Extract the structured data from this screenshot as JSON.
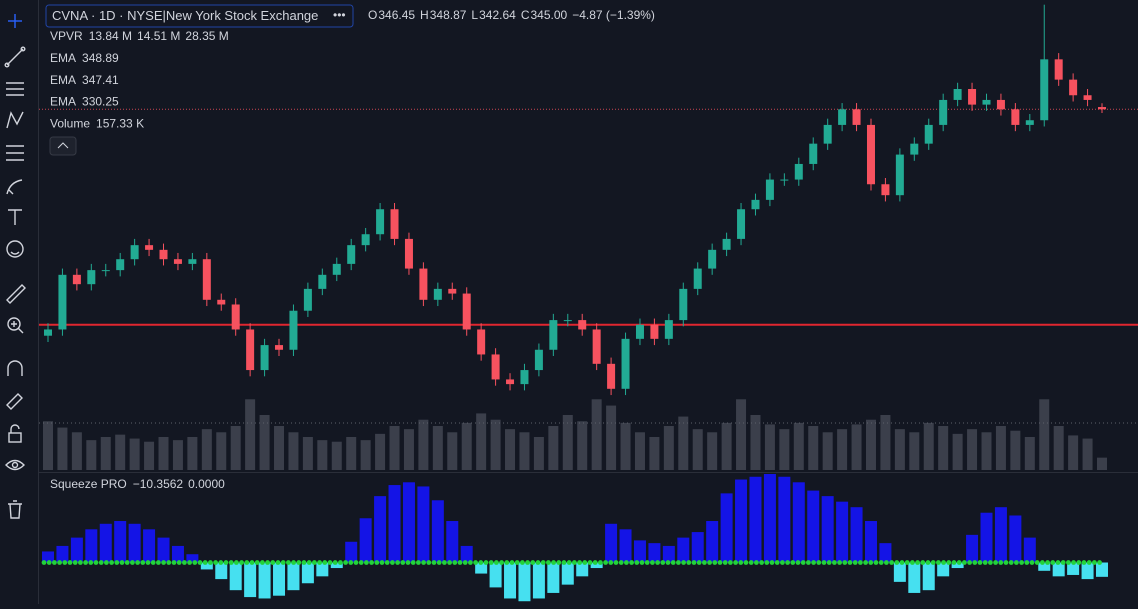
{
  "header": {
    "symbol": "CVNA · 1D · NYSE|New York Stock Exchange",
    "menu": "•••",
    "ohlc": [
      {
        "label": "O",
        "value": "346.45"
      },
      {
        "label": "H",
        "value": "348.87"
      },
      {
        "label": "L",
        "value": "342.64"
      },
      {
        "label": "C",
        "value": "345.00"
      }
    ],
    "change": "−4.87 (−1.39%)"
  },
  "indicators": [
    {
      "name": "VPVR",
      "values": [
        "13.84 M",
        "14.51 M",
        "28.35 M"
      ],
      "colors": [
        "#5b9cf6",
        "#e8e84a",
        "#d1d4dc"
      ]
    },
    {
      "name": "EMA",
      "values": [
        "348.89"
      ],
      "colors": [
        "#f7525f"
      ]
    },
    {
      "name": "EMA",
      "values": [
        "347.41"
      ],
      "colors": [
        "#2e6b7c"
      ]
    },
    {
      "name": "EMA",
      "values": [
        "330.25"
      ],
      "colors": [
        "#d1ad5b"
      ]
    },
    {
      "name": "Volume",
      "values": [
        "157.33 K"
      ],
      "colors": [
        "#d1d4dc"
      ]
    }
  ],
  "chart_data": {
    "type": "candlestick",
    "up_color": "#22ab94",
    "down_color": "#f7525f",
    "ylim": [
      114,
      415
    ],
    "hline": 207,
    "hline_color": "#e0262f",
    "candles": [
      [
        200,
        208,
        196,
        204
      ],
      [
        204,
        243,
        200,
        239
      ],
      [
        239,
        243,
        229,
        233
      ],
      [
        233,
        246,
        229,
        242
      ],
      [
        242,
        246,
        238,
        242
      ],
      [
        242,
        253,
        238,
        249
      ],
      [
        249,
        262,
        245,
        258
      ],
      [
        258,
        262,
        251,
        255
      ],
      [
        255,
        259,
        245,
        249
      ],
      [
        249,
        253,
        242,
        246
      ],
      [
        246,
        253,
        242,
        249
      ],
      [
        249,
        253,
        219,
        223
      ],
      [
        223,
        227,
        216,
        220
      ],
      [
        220,
        224,
        200,
        204
      ],
      [
        204,
        208,
        174,
        178
      ],
      [
        178,
        198,
        174,
        194
      ],
      [
        194,
        198,
        187,
        191
      ],
      [
        191,
        220,
        187,
        216
      ],
      [
        216,
        234,
        212,
        230
      ],
      [
        230,
        243,
        226,
        239
      ],
      [
        239,
        250,
        235,
        246
      ],
      [
        246,
        262,
        242,
        258
      ],
      [
        258,
        269,
        254,
        265
      ],
      [
        265,
        285,
        261,
        281
      ],
      [
        281,
        285,
        258,
        262
      ],
      [
        262,
        266,
        239,
        243
      ],
      [
        243,
        247,
        219,
        223
      ],
      [
        223,
        234,
        219,
        230
      ],
      [
        230,
        234,
        223,
        227
      ],
      [
        227,
        231,
        200,
        204
      ],
      [
        204,
        208,
        184,
        188
      ],
      [
        188,
        192,
        168,
        172
      ],
      [
        172,
        176,
        165,
        169
      ],
      [
        169,
        182,
        165,
        178
      ],
      [
        178,
        195,
        174,
        191
      ],
      [
        191,
        214,
        187,
        210
      ],
      [
        210,
        214,
        206,
        210
      ],
      [
        210,
        214,
        200,
        204
      ],
      [
        204,
        208,
        178,
        182
      ],
      [
        182,
        186,
        162,
        166
      ],
      [
        166,
        202,
        162,
        198
      ],
      [
        198,
        211,
        194,
        207
      ],
      [
        207,
        211,
        194,
        198
      ],
      [
        198,
        214,
        194,
        210
      ],
      [
        210,
        234,
        206,
        230
      ],
      [
        230,
        247,
        226,
        243
      ],
      [
        243,
        259,
        239,
        255
      ],
      [
        255,
        266,
        251,
        262
      ],
      [
        262,
        285,
        258,
        281
      ],
      [
        281,
        291,
        277,
        287
      ],
      [
        287,
        304,
        283,
        300
      ],
      [
        300,
        304,
        296,
        300
      ],
      [
        300,
        314,
        296,
        310
      ],
      [
        310,
        327,
        306,
        323
      ],
      [
        323,
        339,
        319,
        335
      ],
      [
        335,
        349,
        331,
        345
      ],
      [
        345,
        349,
        331,
        335
      ],
      [
        335,
        339,
        293,
        297
      ],
      [
        297,
        301,
        286,
        290
      ],
      [
        290,
        320,
        286,
        316
      ],
      [
        316,
        327,
        312,
        323
      ],
      [
        323,
        339,
        319,
        335
      ],
      [
        335,
        355,
        331,
        351
      ],
      [
        351,
        362,
        347,
        358
      ],
      [
        358,
        362,
        344,
        348
      ],
      [
        348,
        355,
        344,
        351
      ],
      [
        351,
        355,
        341,
        345
      ],
      [
        345,
        349,
        331,
        335
      ],
      [
        335,
        342,
        331,
        338
      ],
      [
        338,
        412,
        334,
        377
      ],
      [
        377,
        381,
        360,
        364
      ],
      [
        364,
        368,
        350,
        354
      ],
      [
        354,
        358,
        347,
        351
      ],
      [
        346.45,
        348.87,
        342.64,
        345.0
      ]
    ],
    "volume": {
      "color": "#3b3f4b",
      "ylim": [
        0,
        1400
      ],
      "values": [
        620,
        540,
        480,
        380,
        420,
        450,
        400,
        360,
        420,
        380,
        420,
        520,
        480,
        560,
        900,
        700,
        560,
        480,
        420,
        380,
        360,
        420,
        380,
        460,
        560,
        520,
        640,
        560,
        480,
        600,
        720,
        640,
        520,
        480,
        420,
        560,
        700,
        620,
        900,
        820,
        600,
        480,
        420,
        560,
        680,
        520,
        480,
        600,
        900,
        700,
        580,
        520,
        600,
        560,
        480,
        520,
        580,
        640,
        700,
        520,
        480,
        600,
        560,
        460,
        520,
        480,
        560,
        500,
        420,
        900,
        560,
        440,
        400,
        157.33
      ]
    },
    "squeeze": {
      "title": "Squeeze PRO",
      "labels": [
        "−10.3562",
        "0.0000"
      ],
      "label_colors": [
        "#3dd6e8",
        "#f7a21b"
      ],
      "pos_color": "#1414e6",
      "neg_color": "#46e0f0",
      "ylim": [
        -30,
        64
      ],
      "values": [
        8,
        12,
        18,
        24,
        28,
        30,
        28,
        24,
        18,
        12,
        6,
        -5,
        -12,
        -20,
        -25,
        -26,
        -24,
        -20,
        -15,
        -10,
        -4,
        15,
        32,
        48,
        56,
        58,
        55,
        45,
        30,
        12,
        -8,
        -18,
        -26,
        -28,
        -26,
        -22,
        -16,
        -10,
        -4,
        28,
        24,
        16,
        14,
        12,
        18,
        22,
        30,
        50,
        60,
        62,
        64,
        62,
        58,
        52,
        48,
        44,
        40,
        30,
        14,
        -14,
        -22,
        -20,
        -10,
        -4,
        20,
        36,
        40,
        34,
        18,
        -6,
        -10,
        -9,
        -12,
        -10.3562
      ]
    }
  }
}
